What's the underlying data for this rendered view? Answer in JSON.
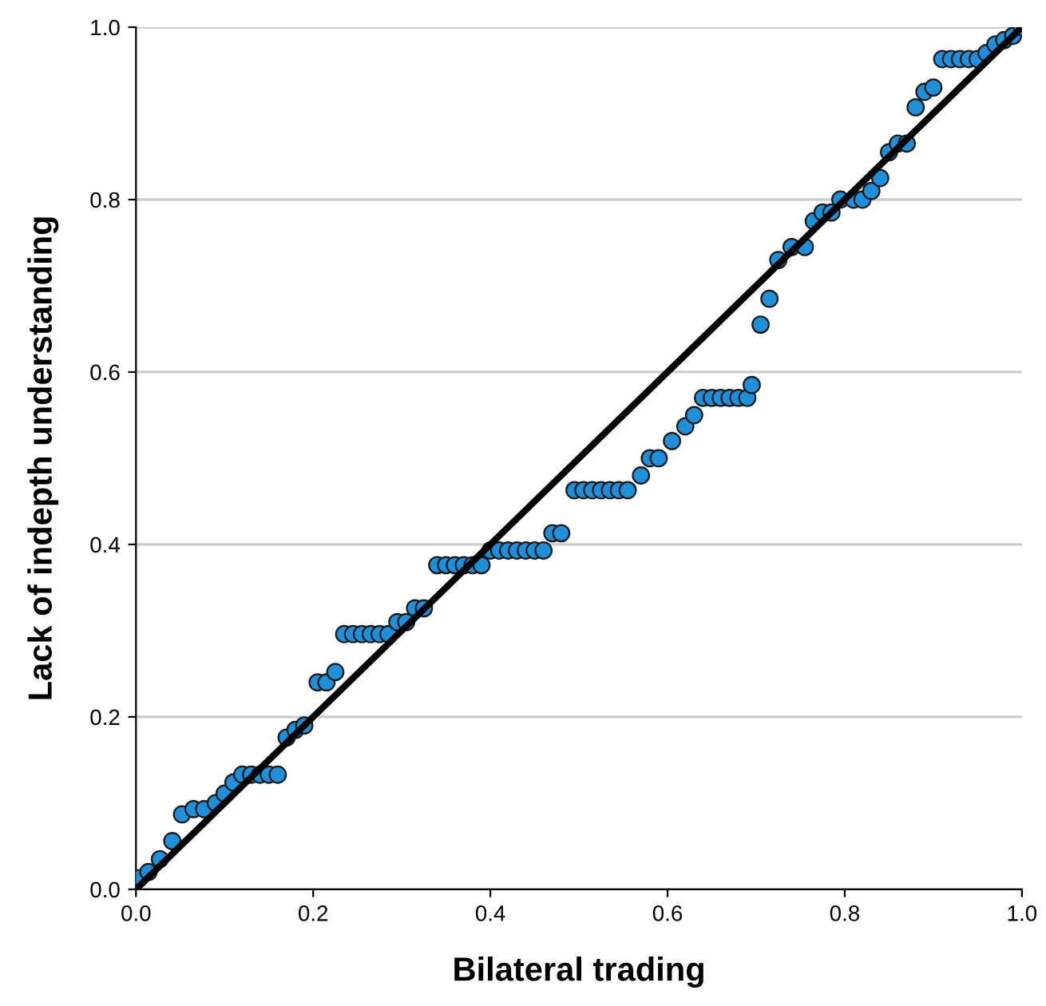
{
  "chart_data": {
    "type": "scatter",
    "xlabel": "Bilateral trading",
    "ylabel": "Lack of indepth understanding",
    "xlim": [
      0,
      1
    ],
    "ylim": [
      0,
      1
    ],
    "xticks": [
      {
        "value": 0,
        "label": "0.0"
      },
      0.2,
      0.4,
      0.6,
      0.8,
      {
        "value": 1,
        "label": "1.0"
      }
    ],
    "yticks": [
      {
        "value": 0,
        "label": "0.0"
      },
      0.2,
      0.4,
      0.6,
      0.8,
      {
        "value": 1,
        "label": "1.0"
      }
    ],
    "grid": "y",
    "series": [
      {
        "marker": "circle",
        "color": "#1e8fd8",
        "x": [
          0.004,
          0.014,
          0.027,
          0.041,
          0.052,
          0.065,
          0.077,
          0.09,
          0.1,
          0.11,
          0.12,
          0.13,
          0.14,
          0.15,
          0.16,
          0.17,
          0.18,
          0.19,
          0.205,
          0.215,
          0.225,
          0.235,
          0.245,
          0.255,
          0.265,
          0.275,
          0.285,
          0.295,
          0.305,
          0.315,
          0.325,
          0.34,
          0.35,
          0.36,
          0.37,
          0.38,
          0.39,
          0.4,
          0.41,
          0.42,
          0.43,
          0.44,
          0.45,
          0.46,
          0.47,
          0.48,
          0.495,
          0.505,
          0.515,
          0.525,
          0.535,
          0.545,
          0.555,
          0.57,
          0.58,
          0.59,
          0.605,
          0.62,
          0.63,
          0.64,
          0.65,
          0.66,
          0.67,
          0.68,
          0.69,
          0.695,
          0.705,
          0.715,
          0.725,
          0.74,
          0.755,
          0.765,
          0.775,
          0.785,
          0.795,
          0.81,
          0.82,
          0.83,
          0.84,
          0.85,
          0.86,
          0.87,
          0.88,
          0.89,
          0.9,
          0.91,
          0.92,
          0.93,
          0.94,
          0.95,
          0.96,
          0.97,
          0.98,
          0.99,
          1.0
        ],
        "values": [
          0.013,
          0.02,
          0.035,
          0.056,
          0.087,
          0.093,
          0.093,
          0.1,
          0.111,
          0.124,
          0.133,
          0.133,
          0.133,
          0.133,
          0.133,
          0.176,
          0.185,
          0.19,
          0.24,
          0.24,
          0.252,
          0.296,
          0.296,
          0.296,
          0.296,
          0.296,
          0.296,
          0.31,
          0.31,
          0.326,
          0.326,
          0.376,
          0.376,
          0.376,
          0.376,
          0.376,
          0.376,
          0.393,
          0.393,
          0.393,
          0.393,
          0.393,
          0.393,
          0.393,
          0.413,
          0.413,
          0.463,
          0.463,
          0.463,
          0.463,
          0.463,
          0.463,
          0.463,
          0.48,
          0.5,
          0.5,
          0.52,
          0.537,
          0.55,
          0.57,
          0.57,
          0.57,
          0.57,
          0.57,
          0.57,
          0.585,
          0.655,
          0.685,
          0.73,
          0.745,
          0.745,
          0.775,
          0.785,
          0.785,
          0.8,
          0.8,
          0.8,
          0.81,
          0.825,
          0.855,
          0.865,
          0.865,
          0.907,
          0.925,
          0.93,
          0.963,
          0.963,
          0.963,
          0.963,
          0.963,
          0.97,
          0.98,
          0.985,
          0.99,
          1.0
        ]
      },
      {
        "type": "line",
        "color": "#000000",
        "x": [
          0,
          1
        ],
        "values": [
          0,
          1
        ]
      }
    ]
  }
}
